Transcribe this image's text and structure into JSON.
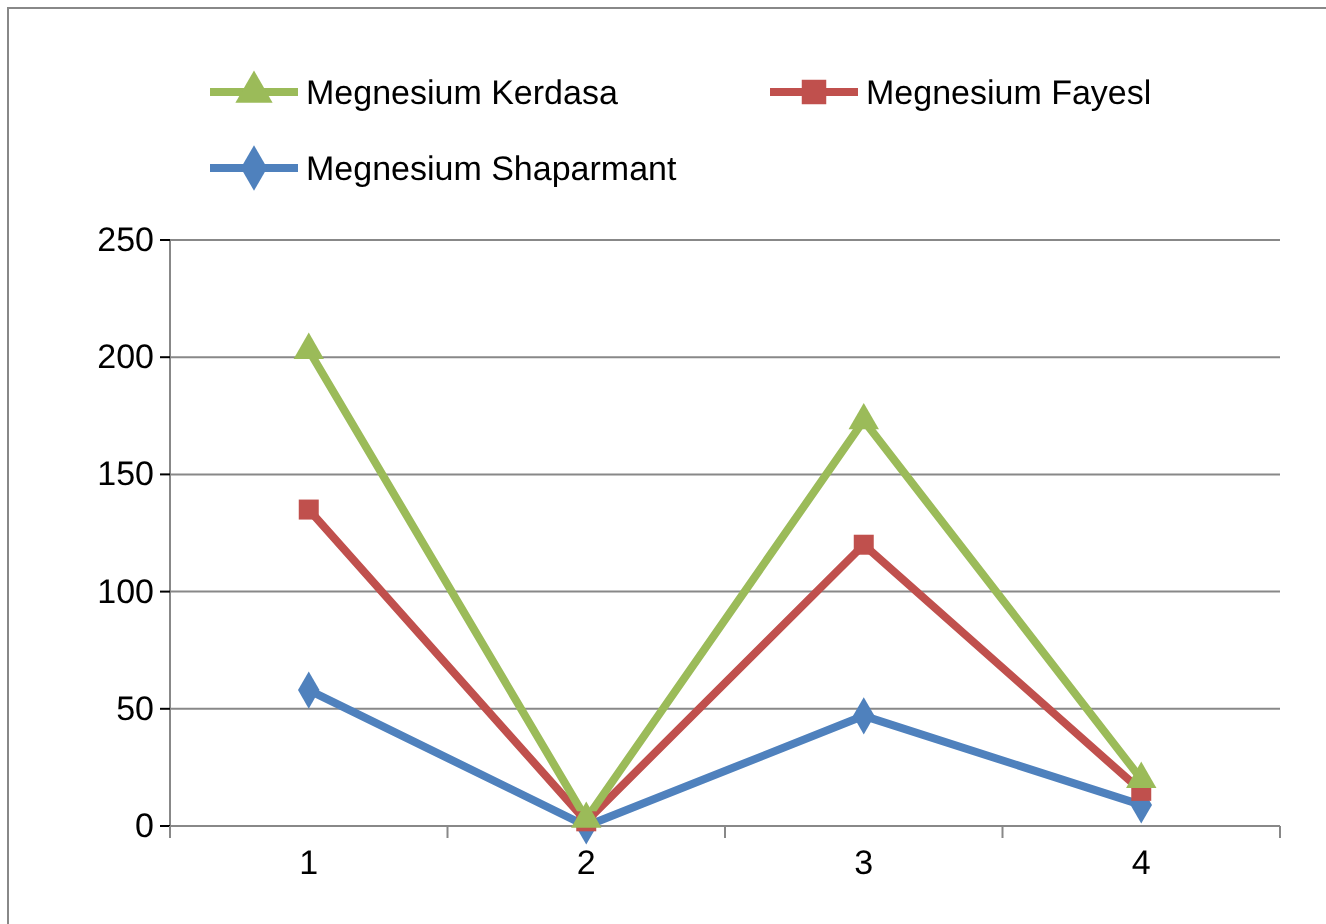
{
  "chart_data": {
    "type": "line",
    "categories": [
      "1",
      "2",
      "3",
      "4"
    ],
    "series": [
      {
        "name": "Megnesium Kerdasa",
        "color": "#9bbb59",
        "marker": "triangle",
        "values": [
          203,
          3,
          173,
          20
        ]
      },
      {
        "name": "Megnesium Fayesl",
        "color": "#c0504d",
        "marker": "square",
        "values": [
          135,
          2,
          120,
          15
        ]
      },
      {
        "name": "Megnesium Shaparmant",
        "color": "#4f81bd",
        "marker": "diamond",
        "values": [
          58,
          0,
          47,
          9
        ]
      }
    ],
    "ylim": [
      0,
      250
    ],
    "yticks": [
      0,
      50,
      100,
      150,
      200,
      250
    ],
    "grid": "y",
    "legend": "top"
  }
}
